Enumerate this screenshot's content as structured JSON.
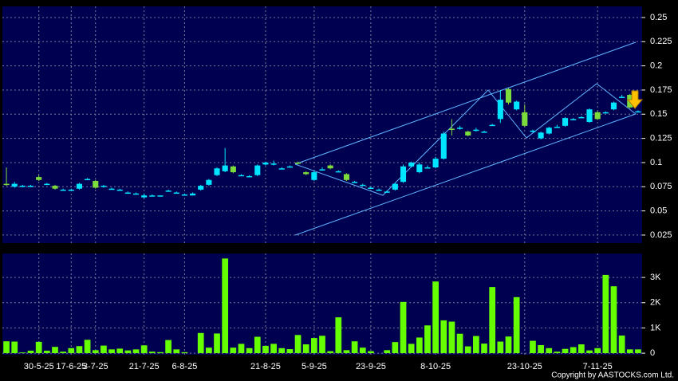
{
  "chart_data": [
    {
      "type": "candlestick",
      "up_color": "#00e5ff",
      "down_color": "#7cdc3c",
      "open": [
        0.078,
        0.075,
        0.076,
        0.076,
        0.085,
        0.078,
        0.076,
        0.072,
        0.072,
        0.073,
        0.083,
        0.081,
        0.075,
        0.073,
        0.072,
        0.069,
        0.068,
        0.064,
        0.066,
        0.066,
        0.071,
        0.069,
        0.067,
        0.066,
        0.072,
        0.077,
        0.087,
        0.091,
        0.096,
        0.087,
        0.086,
        0.087,
        0.098,
        0.098,
        0.094,
        0.096,
        0.1,
        0.09,
        0.082,
        0.093,
        0.097,
        0.091,
        0.088,
        0.08,
        0.077,
        0.074,
        0.072,
        0.07,
        0.072,
        0.08,
        0.096,
        0.09,
        0.095,
        0.095,
        0.104,
        0.135,
        0.136,
        0.132,
        0.134,
        0.132,
        0.139,
        0.145,
        0.176,
        0.155,
        0.152,
        0.133,
        0.125,
        0.13,
        0.137,
        0.138,
        0.145,
        0.147,
        0.142,
        0.152,
        0.152,
        0.155,
        0.168,
        0.17,
        0.153
      ],
      "high": [
        0.095,
        0.08,
        0.077,
        0.077,
        0.087,
        0.079,
        0.077,
        0.073,
        0.073,
        0.079,
        0.084,
        0.082,
        0.077,
        0.074,
        0.073,
        0.07,
        0.069,
        0.068,
        0.067,
        0.066,
        0.072,
        0.07,
        0.068,
        0.069,
        0.077,
        0.083,
        0.095,
        0.115,
        0.097,
        0.088,
        0.087,
        0.098,
        0.101,
        0.102,
        0.095,
        0.097,
        0.101,
        0.091,
        0.092,
        0.095,
        0.098,
        0.092,
        0.089,
        0.081,
        0.078,
        0.075,
        0.073,
        0.071,
        0.079,
        0.098,
        0.101,
        0.1,
        0.097,
        0.106,
        0.132,
        0.145,
        0.138,
        0.133,
        0.136,
        0.133,
        0.14,
        0.175,
        0.177,
        0.164,
        0.16,
        0.134,
        0.132,
        0.137,
        0.139,
        0.147,
        0.146,
        0.148,
        0.156,
        0.153,
        0.153,
        0.163,
        0.17,
        0.171,
        0.154
      ],
      "low": [
        0.076,
        0.074,
        0.076,
        0.075,
        0.081,
        0.077,
        0.072,
        0.071,
        0.072,
        0.072,
        0.082,
        0.073,
        0.074,
        0.072,
        0.071,
        0.068,
        0.067,
        0.063,
        0.065,
        0.066,
        0.07,
        0.068,
        0.066,
        0.066,
        0.071,
        0.076,
        0.086,
        0.09,
        0.089,
        0.086,
        0.085,
        0.086,
        0.097,
        0.097,
        0.093,
        0.095,
        0.098,
        0.087,
        0.081,
        0.092,
        0.093,
        0.09,
        0.081,
        0.079,
        0.076,
        0.073,
        0.071,
        0.069,
        0.071,
        0.079,
        0.095,
        0.089,
        0.094,
        0.094,
        0.103,
        0.128,
        0.134,
        0.127,
        0.132,
        0.131,
        0.138,
        0.141,
        0.16,
        0.154,
        0.137,
        0.131,
        0.124,
        0.129,
        0.136,
        0.137,
        0.144,
        0.146,
        0.141,
        0.144,
        0.151,
        0.154,
        0.167,
        0.156,
        0.152
      ],
      "close": [
        0.077,
        0.078,
        0.076,
        0.076,
        0.082,
        0.078,
        0.073,
        0.072,
        0.072,
        0.078,
        0.083,
        0.074,
        0.076,
        0.073,
        0.072,
        0.069,
        0.068,
        0.066,
        0.066,
        0.066,
        0.071,
        0.069,
        0.067,
        0.068,
        0.076,
        0.082,
        0.094,
        0.097,
        0.09,
        0.087,
        0.086,
        0.097,
        0.1,
        0.099,
        0.094,
        0.096,
        0.099,
        0.088,
        0.09,
        0.093,
        0.094,
        0.091,
        0.082,
        0.08,
        0.077,
        0.074,
        0.072,
        0.07,
        0.078,
        0.096,
        0.1,
        0.098,
        0.095,
        0.104,
        0.13,
        0.134,
        0.136,
        0.128,
        0.134,
        0.132,
        0.139,
        0.165,
        0.162,
        0.163,
        0.138,
        0.133,
        0.131,
        0.136,
        0.137,
        0.146,
        0.145,
        0.147,
        0.155,
        0.145,
        0.152,
        0.162,
        0.168,
        0.157,
        0.153
      ],
      "ylim": [
        0.0167,
        0.2615
      ],
      "yticks": [
        0.025,
        0.05,
        0.075,
        0.1,
        0.125,
        0.15,
        0.175,
        0.2,
        0.225,
        0.25
      ],
      "grid": true
    },
    {
      "type": "bar",
      "color": "#66ff00",
      "categories": [
        null,
        null,
        null,
        null,
        "30-5-25",
        null,
        null,
        null,
        "17-6-25",
        null,
        null,
        "3-7-25",
        null,
        null,
        null,
        null,
        null,
        "21-7-25",
        null,
        null,
        null,
        null,
        "6-8-25",
        null,
        null,
        null,
        null,
        null,
        null,
        null,
        null,
        null,
        "21-8-25",
        null,
        null,
        null,
        null,
        null,
        "5-9-25",
        null,
        null,
        null,
        null,
        null,
        null,
        "23-9-25",
        null,
        null,
        null,
        null,
        null,
        null,
        null,
        "8-10-25",
        null,
        null,
        null,
        null,
        null,
        null,
        null,
        null,
        null,
        null,
        "23-10-25",
        null,
        null,
        null,
        null,
        null,
        null,
        null,
        null,
        "7-11-25",
        null,
        null,
        null,
        null,
        null
      ],
      "values": [
        470,
        460,
        30,
        100,
        450,
        100,
        250,
        60,
        200,
        280,
        530,
        120,
        300,
        150,
        180,
        110,
        150,
        310,
        60,
        40,
        520,
        150,
        40,
        0,
        800,
        220,
        780,
        3750,
        220,
        370,
        200,
        650,
        290,
        370,
        200,
        160,
        720,
        350,
        600,
        690,
        80,
        1420,
        120,
        470,
        220,
        80,
        0,
        120,
        440,
        2030,
        370,
        620,
        1100,
        2840,
        1300,
        1250,
        770,
        270,
        680,
        380,
        2620,
        460,
        660,
        2220,
        0,
        490,
        320,
        200,
        60,
        170,
        240,
        350,
        110,
        200,
        3100,
        2650,
        700,
        150,
        150
      ],
      "ylim": [
        -60,
        3950
      ],
      "yticks": [
        0,
        {
          "value": 1000,
          "label": "1K"
        },
        {
          "value": 2000,
          "label": "2K"
        },
        {
          "value": 3000,
          "label": "3K"
        }
      ],
      "grid": true,
      "source": "Copyright by AASTOCKS.com Ltd."
    }
  ]
}
